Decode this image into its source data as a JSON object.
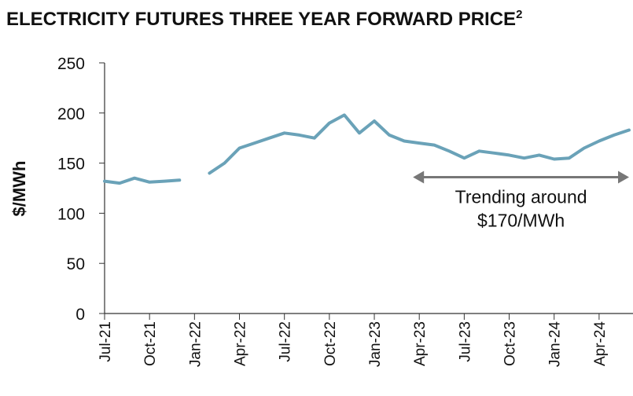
{
  "chart_data": {
    "type": "line",
    "title": "ELECTRICITY FUTURES THREE YEAR FORWARD PRICE",
    "title_footnote": "2",
    "y_label": "$/MWh",
    "x": [
      "Jul-21",
      "Aug-21",
      "Sep-21",
      "Oct-21",
      "Nov-21",
      "Dec-21",
      "Jan-22",
      "Feb-22",
      "Mar-22",
      "Apr-22",
      "May-22",
      "Jun-22",
      "Jul-22",
      "Aug-22",
      "Sep-22",
      "Oct-22",
      "Nov-22",
      "Dec-22",
      "Jan-23",
      "Feb-23",
      "Mar-23",
      "Apr-23",
      "May-23",
      "Jun-23",
      "Jul-23",
      "Aug-23",
      "Sep-23",
      "Oct-23",
      "Nov-23",
      "Dec-23",
      "Jan-24",
      "Feb-24",
      "Mar-24",
      "Apr-24",
      "May-24",
      "Jun-24"
    ],
    "series": [
      {
        "name": "Three year forward price",
        "color": "#6aa2b8",
        "values": [
          132,
          130,
          135,
          131,
          132,
          133,
          null,
          140,
          150,
          165,
          170,
          175,
          180,
          178,
          175,
          190,
          198,
          180,
          192,
          178,
          172,
          170,
          168,
          162,
          155,
          162,
          160,
          158,
          155,
          158,
          154,
          155,
          165,
          172,
          178,
          183
        ]
      }
    ],
    "xticks": [
      "Jul-21",
      "Oct-21",
      "Jan-22",
      "Apr-22",
      "Jul-22",
      "Oct-22",
      "Jan-23",
      "Apr-23",
      "Jul-23",
      "Oct-23",
      "Jan-24",
      "Apr-24"
    ],
    "ylim": [
      0,
      250
    ],
    "yticks": [
      0,
      50,
      100,
      150,
      200,
      250
    ],
    "annotation": {
      "lines": [
        "Trending around",
        "$170/MWh"
      ],
      "arrow_from": "Apr-23",
      "arrow_to": "Jun-24",
      "arrow_y": 136,
      "color": "#777777"
    }
  }
}
